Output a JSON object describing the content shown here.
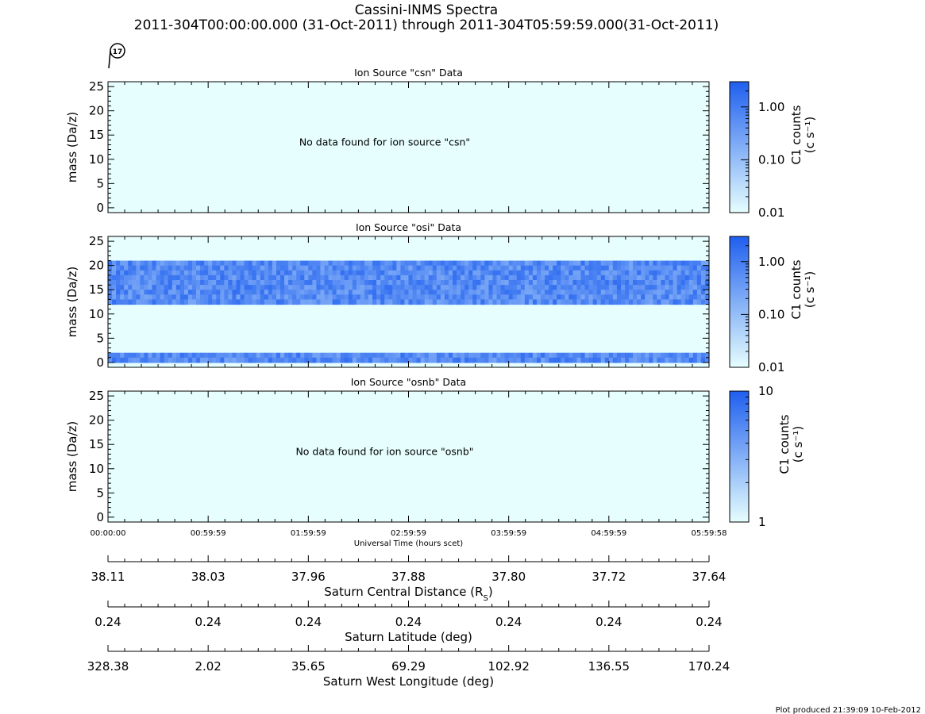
{
  "header": {
    "title": "Cassini-INMS Spectra",
    "time_range": "2011-304T00:00:00.000 (31-Oct-2011) through 2011-304T05:59:59.000(31-Oct-2011)",
    "flyby_badge": "17"
  },
  "colors": {
    "low": "#e6fefe",
    "high": "#1f5fef",
    "frame": "#000000"
  },
  "chart_data": [
    {
      "type": "heatmap",
      "title": "Ion Source \"csn\" Data",
      "ylabel": "mass (Da/z)",
      "ylim": [
        -1,
        26
      ],
      "yticks": [
        0,
        5,
        10,
        15,
        20,
        25
      ],
      "xlim": [
        0,
        6
      ],
      "message": "No data found for ion source \"csn\"",
      "bands": [],
      "colorbar": {
        "label_main": "C1 counts",
        "label_unit": "(c s⁻¹)",
        "scale": "log",
        "range": [
          0.01,
          3
        ],
        "ticks": [
          {
            "value": 0.01,
            "label": "0.01"
          },
          {
            "value": 0.1,
            "label": "0.10"
          },
          {
            "value": 1,
            "label": "1.00"
          }
        ]
      }
    },
    {
      "type": "heatmap",
      "title": "Ion Source \"osi\" Data",
      "ylabel": "mass (Da/z)",
      "ylim": [
        -1,
        26
      ],
      "yticks": [
        0,
        5,
        10,
        15,
        20,
        25
      ],
      "xlim": [
        0,
        6
      ],
      "message": "",
      "bands": [
        {
          "ymin": 0,
          "ymax": 2
        },
        {
          "ymin": 12,
          "ymax": 21
        }
      ],
      "colorbar": {
        "label_main": "C1 counts",
        "label_unit": "(c s⁻¹)",
        "scale": "log",
        "range": [
          0.01,
          3
        ],
        "ticks": [
          {
            "value": 0.01,
            "label": "0.01"
          },
          {
            "value": 0.1,
            "label": "0.10"
          },
          {
            "value": 1,
            "label": "1.00"
          }
        ]
      }
    },
    {
      "type": "heatmap",
      "title": "Ion Source \"osnb\" Data",
      "ylabel": "mass (Da/z)",
      "ylim": [
        -1,
        26
      ],
      "yticks": [
        0,
        5,
        10,
        15,
        20,
        25
      ],
      "xlim": [
        0,
        6
      ],
      "message": "No data found for ion source \"osnb\"",
      "bands": [],
      "colorbar": {
        "label_main": "C1 counts",
        "label_unit": "(c s⁻¹)",
        "scale": "log",
        "range": [
          1,
          10
        ],
        "ticks": [
          {
            "value": 1,
            "label": "1"
          },
          {
            "value": 10,
            "label": "10"
          }
        ]
      }
    }
  ],
  "time_axis": {
    "label": "Universal Time (hours scet)",
    "ticks": [
      "00:00:00",
      "00:59:59",
      "01:59:59",
      "02:59:59",
      "03:59:59",
      "04:59:59",
      "05:59:58"
    ]
  },
  "ephemeris": [
    {
      "label_main": "Saturn Central Distance (R",
      "label_sub": "S",
      "label_end": ")",
      "values": [
        "38.11",
        "38.03",
        "37.96",
        "37.88",
        "37.80",
        "37.72",
        "37.64"
      ]
    },
    {
      "label_main": "Saturn Latitude (deg)",
      "label_sub": "",
      "label_end": "",
      "values": [
        "0.24",
        "0.24",
        "0.24",
        "0.24",
        "0.24",
        "0.24",
        "0.24"
      ]
    },
    {
      "label_main": "Saturn West Longitude (deg)",
      "label_sub": "",
      "label_end": "",
      "values": [
        "328.38",
        "2.02",
        "35.65",
        "69.29",
        "102.92",
        "136.55",
        "170.24"
      ]
    }
  ],
  "footer": "Plot produced 21:39:09 10-Feb-2012"
}
